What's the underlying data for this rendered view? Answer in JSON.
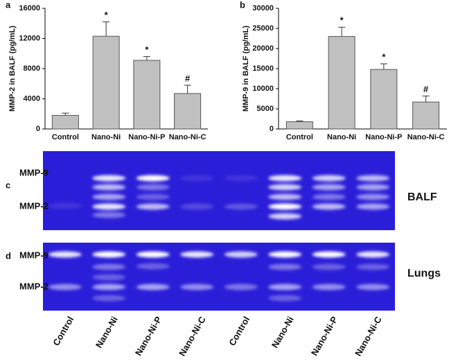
{
  "chart_data": [
    {
      "type": "bar",
      "panel": "a",
      "ylabel": "MMP-2  in BALF (pg/mL)",
      "categories": [
        "Control",
        "Nano-Ni",
        "Nano-Ni-P",
        "Nano-Ni-C"
      ],
      "values": [
        1800,
        12300,
        9100,
        4700
      ],
      "errors": [
        300,
        1900,
        500,
        1100
      ],
      "bar_labels": [
        null,
        "*",
        "*",
        "#"
      ],
      "color": "#c0c0c0",
      "ylim": [
        0,
        16000
      ],
      "yticks": [
        0,
        4000,
        8000,
        12000,
        16000
      ]
    },
    {
      "type": "bar",
      "panel": "b",
      "ylabel": "MMP-9  in BALF (pg/mL)",
      "categories": [
        "Control",
        "Nano-Ni",
        "Nano-Ni-P",
        "Nano-Ni-C"
      ],
      "values": [
        1800,
        23000,
        14800,
        6700
      ],
      "errors": [
        200,
        2300,
        1400,
        1500
      ],
      "bar_labels": [
        null,
        "*",
        "*",
        "#"
      ],
      "color": "#c0c0c0",
      "ylim": [
        0,
        30000
      ],
      "yticks": [
        0,
        5000,
        10000,
        15000,
        20000,
        25000,
        30000
      ]
    }
  ],
  "gels": [
    {
      "panel": "c",
      "sample": "BALF",
      "bands": [
        "MMP-9",
        "MMP-2"
      ]
    },
    {
      "panel": "d",
      "sample": "Lungs",
      "bands": [
        "MMP-9",
        "MMP-2"
      ]
    }
  ],
  "lanes": [
    "Control",
    "Nano-Ni",
    "Nano-Ni-P",
    "Nano-Ni-C",
    "Control",
    "Nano-Ni",
    "Nano-Ni-P",
    "Nano-Ni-C"
  ]
}
